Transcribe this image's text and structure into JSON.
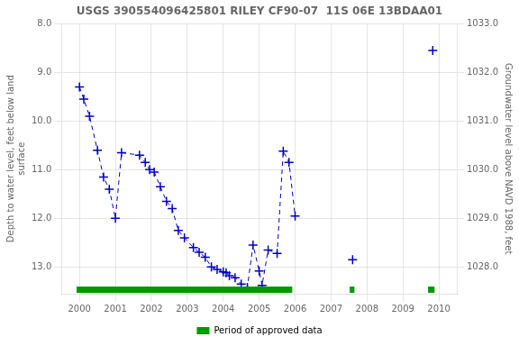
{
  "chart_data": {
    "type": "scatter",
    "title": "USGS 390554096425801 RILEY CF90-07  11S 06E 13BDAA01",
    "ylabel": "Depth to water level, feet below land\nsurface",
    "y2label": "Groundwater level above NAVD 1988, feet",
    "xlim": [
      1999.5,
      2010.5
    ],
    "xticks": [
      2000,
      2001,
      2002,
      2003,
      2004,
      2005,
      2006,
      2007,
      2008,
      2009,
      2010
    ],
    "ylim": [
      13.55,
      8.0
    ],
    "yticks": [
      {
        "value": 8.0,
        "label": "8.0"
      },
      {
        "value": 9.0,
        "label": "9.0"
      },
      {
        "value": 10.0,
        "label": "10.0"
      },
      {
        "value": 11.0,
        "label": "11.0"
      },
      {
        "value": 12.0,
        "label": "12.0"
      },
      {
        "value": 13.0,
        "label": "13.0"
      }
    ],
    "y2lim": [
      1027.45,
      1033.0
    ],
    "y2ticks": [
      {
        "value": 1033.0,
        "label": "1033.0"
      },
      {
        "value": 1032.0,
        "label": "1032.0"
      },
      {
        "value": 1031.0,
        "label": "1031.0"
      },
      {
        "value": 1030.0,
        "label": "1030.0"
      },
      {
        "value": 1029.0,
        "label": "1029.0"
      },
      {
        "value": 1028.0,
        "label": "1028.0"
      }
    ],
    "grid": true,
    "legend": "bottom",
    "series": [
      {
        "type": "line",
        "color": "#0000cc",
        "marker": "plus",
        "line_style": "dashed",
        "x": [
          2000.0,
          2000.12,
          2000.28,
          2000.5,
          2000.67,
          2000.83,
          2001.0,
          2001.17,
          2001.67,
          2001.83,
          2001.95,
          2002.08,
          2002.25,
          2002.42,
          2002.58,
          2002.75,
          2002.92,
          2003.17,
          2003.33,
          2003.5,
          2003.67,
          2003.83,
          2004.0,
          2004.08,
          2004.17,
          2004.33,
          2004.5,
          2004.67,
          2004.83,
          2005.0,
          2005.08,
          2005.25,
          2005.5,
          2005.67,
          2005.83,
          2006.0
        ],
        "values": [
          9.3,
          9.55,
          9.9,
          10.6,
          11.15,
          11.4,
          12.0,
          10.65,
          10.7,
          10.85,
          11.0,
          11.05,
          11.35,
          11.65,
          11.8,
          12.25,
          12.4,
          12.6,
          12.7,
          12.8,
          13.0,
          13.05,
          13.1,
          13.12,
          13.18,
          13.22,
          13.35,
          13.42,
          12.55,
          13.08,
          13.38,
          12.65,
          12.72,
          10.62,
          10.85,
          11.95
        ]
      },
      {
        "type": "scatter",
        "color": "#0000cc",
        "marker": "plus",
        "line_style": "none",
        "x": [
          2007.6,
          2009.83
        ],
        "values": [
          12.85,
          8.55
        ]
      },
      {
        "type": "bar",
        "orientation": "horizontal",
        "name": "Period of approved data",
        "color": "#009900",
        "periods": [
          [
            1999.92,
            2005.92
          ],
          [
            2007.52,
            2007.65
          ],
          [
            2009.7,
            2009.88
          ]
        ]
      }
    ]
  }
}
